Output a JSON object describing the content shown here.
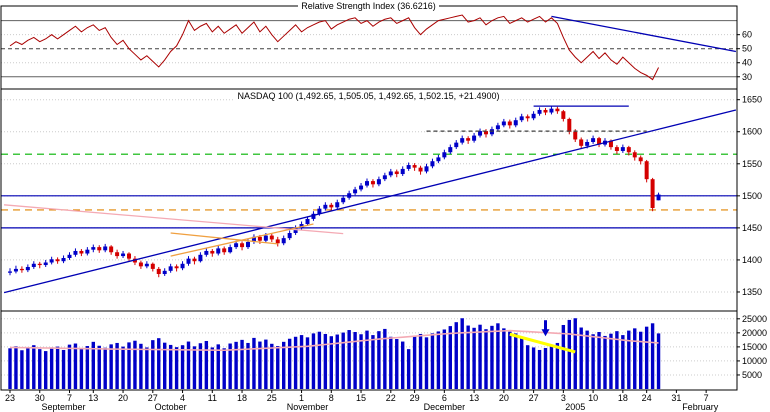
{
  "x_axis": {
    "tick_labels": [
      "23",
      "30",
      "7",
      "13",
      "20",
      "27",
      "4",
      "11",
      "18",
      "25",
      "1",
      "8",
      "15",
      "22",
      "29",
      "6",
      "13",
      "20",
      "27",
      "3",
      "10",
      "18",
      "24",
      "31",
      "7"
    ],
    "tick_indices": [
      0,
      5,
      10,
      14,
      19,
      24,
      29,
      34,
      39,
      44,
      49,
      54,
      59,
      64,
      68,
      73,
      78,
      83,
      88,
      93,
      98,
      103,
      107,
      112,
      117
    ],
    "months": [
      {
        "label": "September",
        "index": 9
      },
      {
        "label": "October",
        "index": 27
      },
      {
        "label": "November",
        "index": 50
      },
      {
        "label": "December",
        "index": 73
      },
      {
        "label": "2005",
        "index": 95
      },
      {
        "label": "February",
        "index": 116
      }
    ]
  },
  "y_axes": {
    "rsi_ticks": [
      60,
      50,
      40,
      30
    ],
    "price_ticks": [
      1650,
      1600,
      1550,
      1500,
      1450,
      1400,
      1350
    ],
    "volume_ticks": [
      25000,
      20000,
      15000,
      10000,
      5000
    ]
  },
  "colors": {
    "up_candle": "#0000c8",
    "down_candle": "#d40000",
    "rsi_line": "#aa0000",
    "blue_trend": "#0000b4",
    "green_dashed": "#00b400",
    "orange_dashed": "#e08400",
    "pink_line": "#f4aab4",
    "pennant_orange": "#f0a040",
    "volume_bar": "#0000c8",
    "volume_ma": "#f4aab4",
    "yellow_annotation": "#ffff00",
    "grid": "#cccccc",
    "axis": "#000000"
  },
  "chart_data": [
    {
      "type": "line",
      "panel": "rsi",
      "title": "Relative Strength Index (36.6216)",
      "ylim": [
        22,
        79
      ],
      "reference_lines": {
        "solid": [
          70,
          30
        ],
        "dashed": [
          50
        ]
      },
      "trendline": {
        "x1_index": 91,
        "y1": 73,
        "x2_index": 122,
        "y2": 48
      },
      "values": [
        52,
        55,
        53,
        56,
        58,
        55,
        57,
        60,
        57,
        60,
        63,
        66,
        62,
        65,
        67,
        63,
        65,
        58,
        53,
        56,
        50,
        46,
        42,
        45,
        41,
        37,
        42,
        48,
        52,
        60,
        70,
        63,
        66,
        68,
        62,
        66,
        61,
        64,
        67,
        61,
        65,
        69,
        62,
        66,
        60,
        55,
        59,
        63,
        67,
        62,
        65,
        67,
        69,
        70,
        64,
        67,
        69,
        71,
        72,
        68,
        70,
        66,
        69,
        71,
        72,
        68,
        70,
        72,
        65,
        60,
        64,
        67,
        70,
        71,
        72,
        73,
        74,
        69,
        70,
        72,
        67,
        70,
        72,
        73,
        68,
        70,
        72,
        69,
        71,
        73,
        69,
        72,
        68,
        58,
        49,
        44,
        40,
        44,
        48,
        43,
        47,
        42,
        39,
        44,
        40,
        36,
        33,
        31,
        28,
        36.6
      ]
    },
    {
      "type": "candlestick",
      "panel": "price",
      "title": "NASDAQ 100 (1,492.65, 1,505.05, 1,492.65, 1,502.15, +21.4900)",
      "ylim": [
        1325,
        1662
      ],
      "ohlc": [
        [
          1380,
          1387,
          1376,
          1382
        ],
        [
          1382,
          1391,
          1379,
          1386
        ],
        [
          1386,
          1390,
          1380,
          1384
        ],
        [
          1384,
          1393,
          1381,
          1389
        ],
        [
          1389,
          1398,
          1386,
          1394
        ],
        [
          1394,
          1397,
          1387,
          1392
        ],
        [
          1392,
          1400,
          1389,
          1396
        ],
        [
          1396,
          1405,
          1393,
          1401
        ],
        [
          1401,
          1404,
          1394,
          1398
        ],
        [
          1398,
          1407,
          1395,
          1403
        ],
        [
          1403,
          1412,
          1400,
          1408
        ],
        [
          1408,
          1418,
          1405,
          1414
        ],
        [
          1414,
          1417,
          1406,
          1410
        ],
        [
          1410,
          1420,
          1407,
          1416
        ],
        [
          1416,
          1424,
          1412,
          1420
        ],
        [
          1420,
          1423,
          1411,
          1415
        ],
        [
          1415,
          1425,
          1412,
          1421
        ],
        [
          1421,
          1423,
          1408,
          1412
        ],
        [
          1412,
          1416,
          1402,
          1406
        ],
        [
          1406,
          1414,
          1403,
          1410
        ],
        [
          1410,
          1412,
          1398,
          1402
        ],
        [
          1402,
          1406,
          1392,
          1396
        ],
        [
          1396,
          1399,
          1386,
          1390
        ],
        [
          1390,
          1398,
          1387,
          1394
        ],
        [
          1394,
          1396,
          1382,
          1386
        ],
        [
          1386,
          1389,
          1373,
          1378
        ],
        [
          1378,
          1387,
          1375,
          1383
        ],
        [
          1383,
          1394,
          1380,
          1390
        ],
        [
          1390,
          1393,
          1382,
          1387
        ],
        [
          1387,
          1398,
          1384,
          1394
        ],
        [
          1394,
          1406,
          1391,
          1402
        ],
        [
          1402,
          1405,
          1393,
          1398
        ],
        [
          1398,
          1412,
          1396,
          1408
        ],
        [
          1408,
          1418,
          1405,
          1414
        ],
        [
          1414,
          1417,
          1405,
          1410
        ],
        [
          1410,
          1422,
          1407,
          1418
        ],
        [
          1418,
          1421,
          1408,
          1412
        ],
        [
          1412,
          1424,
          1410,
          1420
        ],
        [
          1420,
          1430,
          1417,
          1426
        ],
        [
          1426,
          1429,
          1415,
          1420
        ],
        [
          1420,
          1432,
          1417,
          1428
        ],
        [
          1428,
          1440,
          1425,
          1436
        ],
        [
          1436,
          1439,
          1425,
          1430
        ],
        [
          1430,
          1442,
          1427,
          1438
        ],
        [
          1438,
          1441,
          1428,
          1432
        ],
        [
          1432,
          1436,
          1421,
          1426
        ],
        [
          1426,
          1438,
          1423,
          1434
        ],
        [
          1434,
          1446,
          1431,
          1442
        ],
        [
          1442,
          1454,
          1439,
          1450
        ],
        [
          1450,
          1460,
          1447,
          1456
        ],
        [
          1456,
          1468,
          1453,
          1464
        ],
        [
          1464,
          1476,
          1461,
          1472
        ],
        [
          1472,
          1484,
          1469,
          1480
        ],
        [
          1480,
          1490,
          1477,
          1486
        ],
        [
          1486,
          1489,
          1477,
          1482
        ],
        [
          1482,
          1494,
          1479,
          1490
        ],
        [
          1490,
          1501,
          1487,
          1497
        ],
        [
          1497,
          1508,
          1494,
          1504
        ],
        [
          1504,
          1514,
          1501,
          1510
        ],
        [
          1510,
          1520,
          1507,
          1516
        ],
        [
          1516,
          1527,
          1513,
          1523
        ],
        [
          1523,
          1526,
          1513,
          1518
        ],
        [
          1518,
          1530,
          1515,
          1526
        ],
        [
          1526,
          1536,
          1523,
          1532
        ],
        [
          1532,
          1542,
          1529,
          1538
        ],
        [
          1538,
          1541,
          1529,
          1534
        ],
        [
          1534,
          1546,
          1531,
          1542
        ],
        [
          1542,
          1552,
          1539,
          1548
        ],
        [
          1548,
          1551,
          1539,
          1544
        ],
        [
          1544,
          1547,
          1533,
          1538
        ],
        [
          1538,
          1550,
          1535,
          1546
        ],
        [
          1546,
          1558,
          1543,
          1554
        ],
        [
          1554,
          1564,
          1551,
          1560
        ],
        [
          1560,
          1572,
          1557,
          1568
        ],
        [
          1568,
          1580,
          1565,
          1576
        ],
        [
          1576,
          1587,
          1573,
          1583
        ],
        [
          1583,
          1594,
          1580,
          1590
        ],
        [
          1590,
          1593,
          1581,
          1586
        ],
        [
          1586,
          1598,
          1583,
          1594
        ],
        [
          1594,
          1605,
          1591,
          1601
        ],
        [
          1601,
          1604,
          1591,
          1596
        ],
        [
          1596,
          1608,
          1593,
          1604
        ],
        [
          1604,
          1614,
          1601,
          1610
        ],
        [
          1610,
          1620,
          1607,
          1616
        ],
        [
          1616,
          1619,
          1605,
          1610
        ],
        [
          1610,
          1622,
          1607,
          1618
        ],
        [
          1618,
          1628,
          1615,
          1624
        ],
        [
          1624,
          1627,
          1616,
          1621
        ],
        [
          1621,
          1632,
          1618,
          1628
        ],
        [
          1628,
          1638,
          1625,
          1634
        ],
        [
          1634,
          1637,
          1626,
          1630
        ],
        [
          1630,
          1640,
          1627,
          1636
        ],
        [
          1636,
          1639,
          1628,
          1632
        ],
        [
          1632,
          1634,
          1616,
          1620
        ],
        [
          1620,
          1622,
          1596,
          1600
        ],
        [
          1600,
          1604,
          1584,
          1588
        ],
        [
          1588,
          1591,
          1573,
          1578
        ],
        [
          1578,
          1588,
          1574,
          1584
        ],
        [
          1584,
          1594,
          1581,
          1590
        ],
        [
          1590,
          1592,
          1576,
          1580
        ],
        [
          1580,
          1590,
          1577,
          1586
        ],
        [
          1586,
          1588,
          1572,
          1576
        ],
        [
          1576,
          1579,
          1565,
          1570
        ],
        [
          1570,
          1580,
          1567,
          1576
        ],
        [
          1576,
          1578,
          1563,
          1568
        ],
        [
          1568,
          1571,
          1555,
          1560
        ],
        [
          1560,
          1563,
          1549,
          1554
        ],
        [
          1554,
          1556,
          1521,
          1526
        ],
        [
          1526,
          1528,
          1476,
          1481
        ],
        [
          1493,
          1505,
          1493,
          1502
        ]
      ],
      "overlays": [
        {
          "name": "rising-trendline",
          "type": "segment",
          "color": "#0000b4",
          "x1_index": -1,
          "y1": 1349,
          "x2_index": 122,
          "y2": 1634
        },
        {
          "name": "support-line-1500",
          "type": "hline",
          "color": "#0000b4",
          "value": 1500
        },
        {
          "name": "support-line-1450",
          "type": "hline",
          "color": "#0000b4",
          "value": 1450
        },
        {
          "name": "green-dashed-level",
          "type": "hline",
          "color": "#00b400",
          "value": 1565,
          "dash": "7,5"
        },
        {
          "name": "orange-dashed-level",
          "type": "hline",
          "color": "#e08400",
          "value": 1478,
          "dash": "7,5"
        },
        {
          "name": "pink-downtrend",
          "type": "segment",
          "color": "#f4aab4",
          "x1_index": -1,
          "y1": 1486,
          "x2_index": 56,
          "y2": 1441
        },
        {
          "name": "pennant-support",
          "type": "segment",
          "color": "#f0a040",
          "x1_index": 27,
          "y1": 1406,
          "x2_index": 51,
          "y2": 1456
        },
        {
          "name": "pennant-resistance",
          "type": "segment",
          "color": "#f0a040",
          "x1_index": 27,
          "y1": 1442,
          "x2_index": 45,
          "y2": 1425
        },
        {
          "name": "dashed-resistance-1600",
          "type": "segment",
          "color": "#404040",
          "dash": "4,3",
          "x1_index": 70,
          "y1": 1601,
          "x2_index": 107,
          "y2": 1601
        },
        {
          "name": "top-resistance",
          "type": "segment",
          "color": "#0000b4",
          "x1_index": 88,
          "y1": 1640,
          "x2_index": 104,
          "y2": 1640
        }
      ]
    },
    {
      "type": "bar",
      "panel": "volume",
      "title": "Volume",
      "ylim": [
        0,
        26000
      ],
      "values": [
        14500,
        15200,
        13800,
        14900,
        15600,
        14200,
        13500,
        14800,
        15100,
        13900,
        15800,
        16200,
        14600,
        15300,
        16800,
        15400,
        14700,
        15900,
        16400,
        15100,
        16600,
        17200,
        16100,
        14800,
        17400,
        18100,
        16500,
        15700,
        14900,
        15600,
        16900,
        15200,
        16300,
        17100,
        14800,
        15900,
        14500,
        16200,
        16800,
        17500,
        16400,
        18200,
        16900,
        17600,
        16100,
        15300,
        16800,
        17900,
        18600,
        19200,
        18400,
        19800,
        20400,
        19600,
        18800,
        19400,
        20100,
        21000,
        20300,
        19500,
        20800,
        19200,
        20600,
        21400,
        18600,
        17800,
        16900,
        14200,
        18900,
        19600,
        18400,
        19800,
        20500,
        21200,
        22400,
        23800,
        25200,
        22600,
        21800,
        22900,
        21300,
        22500,
        23400,
        21600,
        20400,
        19800,
        18200,
        15600,
        14800,
        13900,
        14600,
        15800,
        16400,
        22800,
        24600,
        25200,
        21900,
        20800,
        19500,
        20300,
        18900,
        19700,
        20600,
        19200,
        20800,
        21600,
        20400,
        22200,
        23400,
        19800
      ],
      "ma_line": {
        "color": "#f4aab4",
        "points": [
          {
            "i": 0,
            "v": 14800
          },
          {
            "i": 18,
            "v": 14200
          },
          {
            "i": 36,
            "v": 13800
          },
          {
            "i": 50,
            "v": 15200
          },
          {
            "i": 62,
            "v": 17800
          },
          {
            "i": 74,
            "v": 19800
          },
          {
            "i": 84,
            "v": 20800
          },
          {
            "i": 94,
            "v": 19600
          },
          {
            "i": 104,
            "v": 17200
          },
          {
            "i": 109,
            "v": 16400
          }
        ]
      },
      "annotations": [
        {
          "name": "yellow-trendline",
          "type": "segment",
          "color": "#ffff00",
          "width": 3,
          "x1_index": 84,
          "y1": 19500,
          "x2_index": 95,
          "y2": 13200
        },
        {
          "name": "down-arrow",
          "type": "arrow",
          "color": "#0000c8",
          "index": 90,
          "from": 24500,
          "to": 18800
        }
      ]
    }
  ]
}
